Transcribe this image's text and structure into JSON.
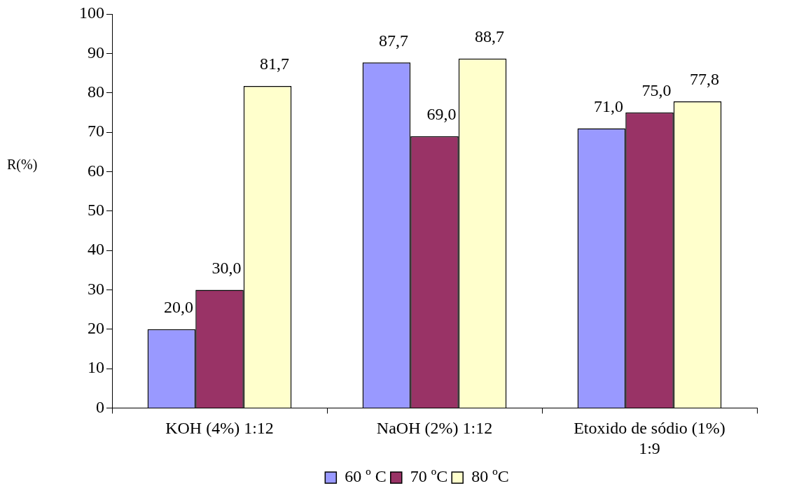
{
  "chart_data": {
    "type": "bar",
    "ylabel": "R(%)",
    "categories": [
      "KOH (4%) 1:12",
      "NaOH (2%) 1:12",
      "Etoxido de sódio (1%) 1:9"
    ],
    "series": [
      {
        "name": "60 º C",
        "color": "#9999ff",
        "values": [
          20.0,
          87.7,
          71.0
        ],
        "value_labels": [
          "20,0",
          "87,7",
          "71,0"
        ]
      },
      {
        "name": "70 ºC",
        "color": "#993366",
        "values": [
          30.0,
          69.0,
          75.0
        ],
        "value_labels": [
          "30,0",
          "69,0",
          "75,0"
        ]
      },
      {
        "name": "80 ºC",
        "color": "#ffffcc",
        "values": [
          81.7,
          88.7,
          77.8
        ],
        "value_labels": [
          "81,7",
          "88,7",
          "77,8"
        ]
      }
    ],
    "ylim": [
      0,
      100
    ],
    "yticks": [
      0,
      10,
      20,
      30,
      40,
      50,
      60,
      70,
      80,
      90,
      100
    ],
    "grid": false,
    "legend": "bottom"
  }
}
